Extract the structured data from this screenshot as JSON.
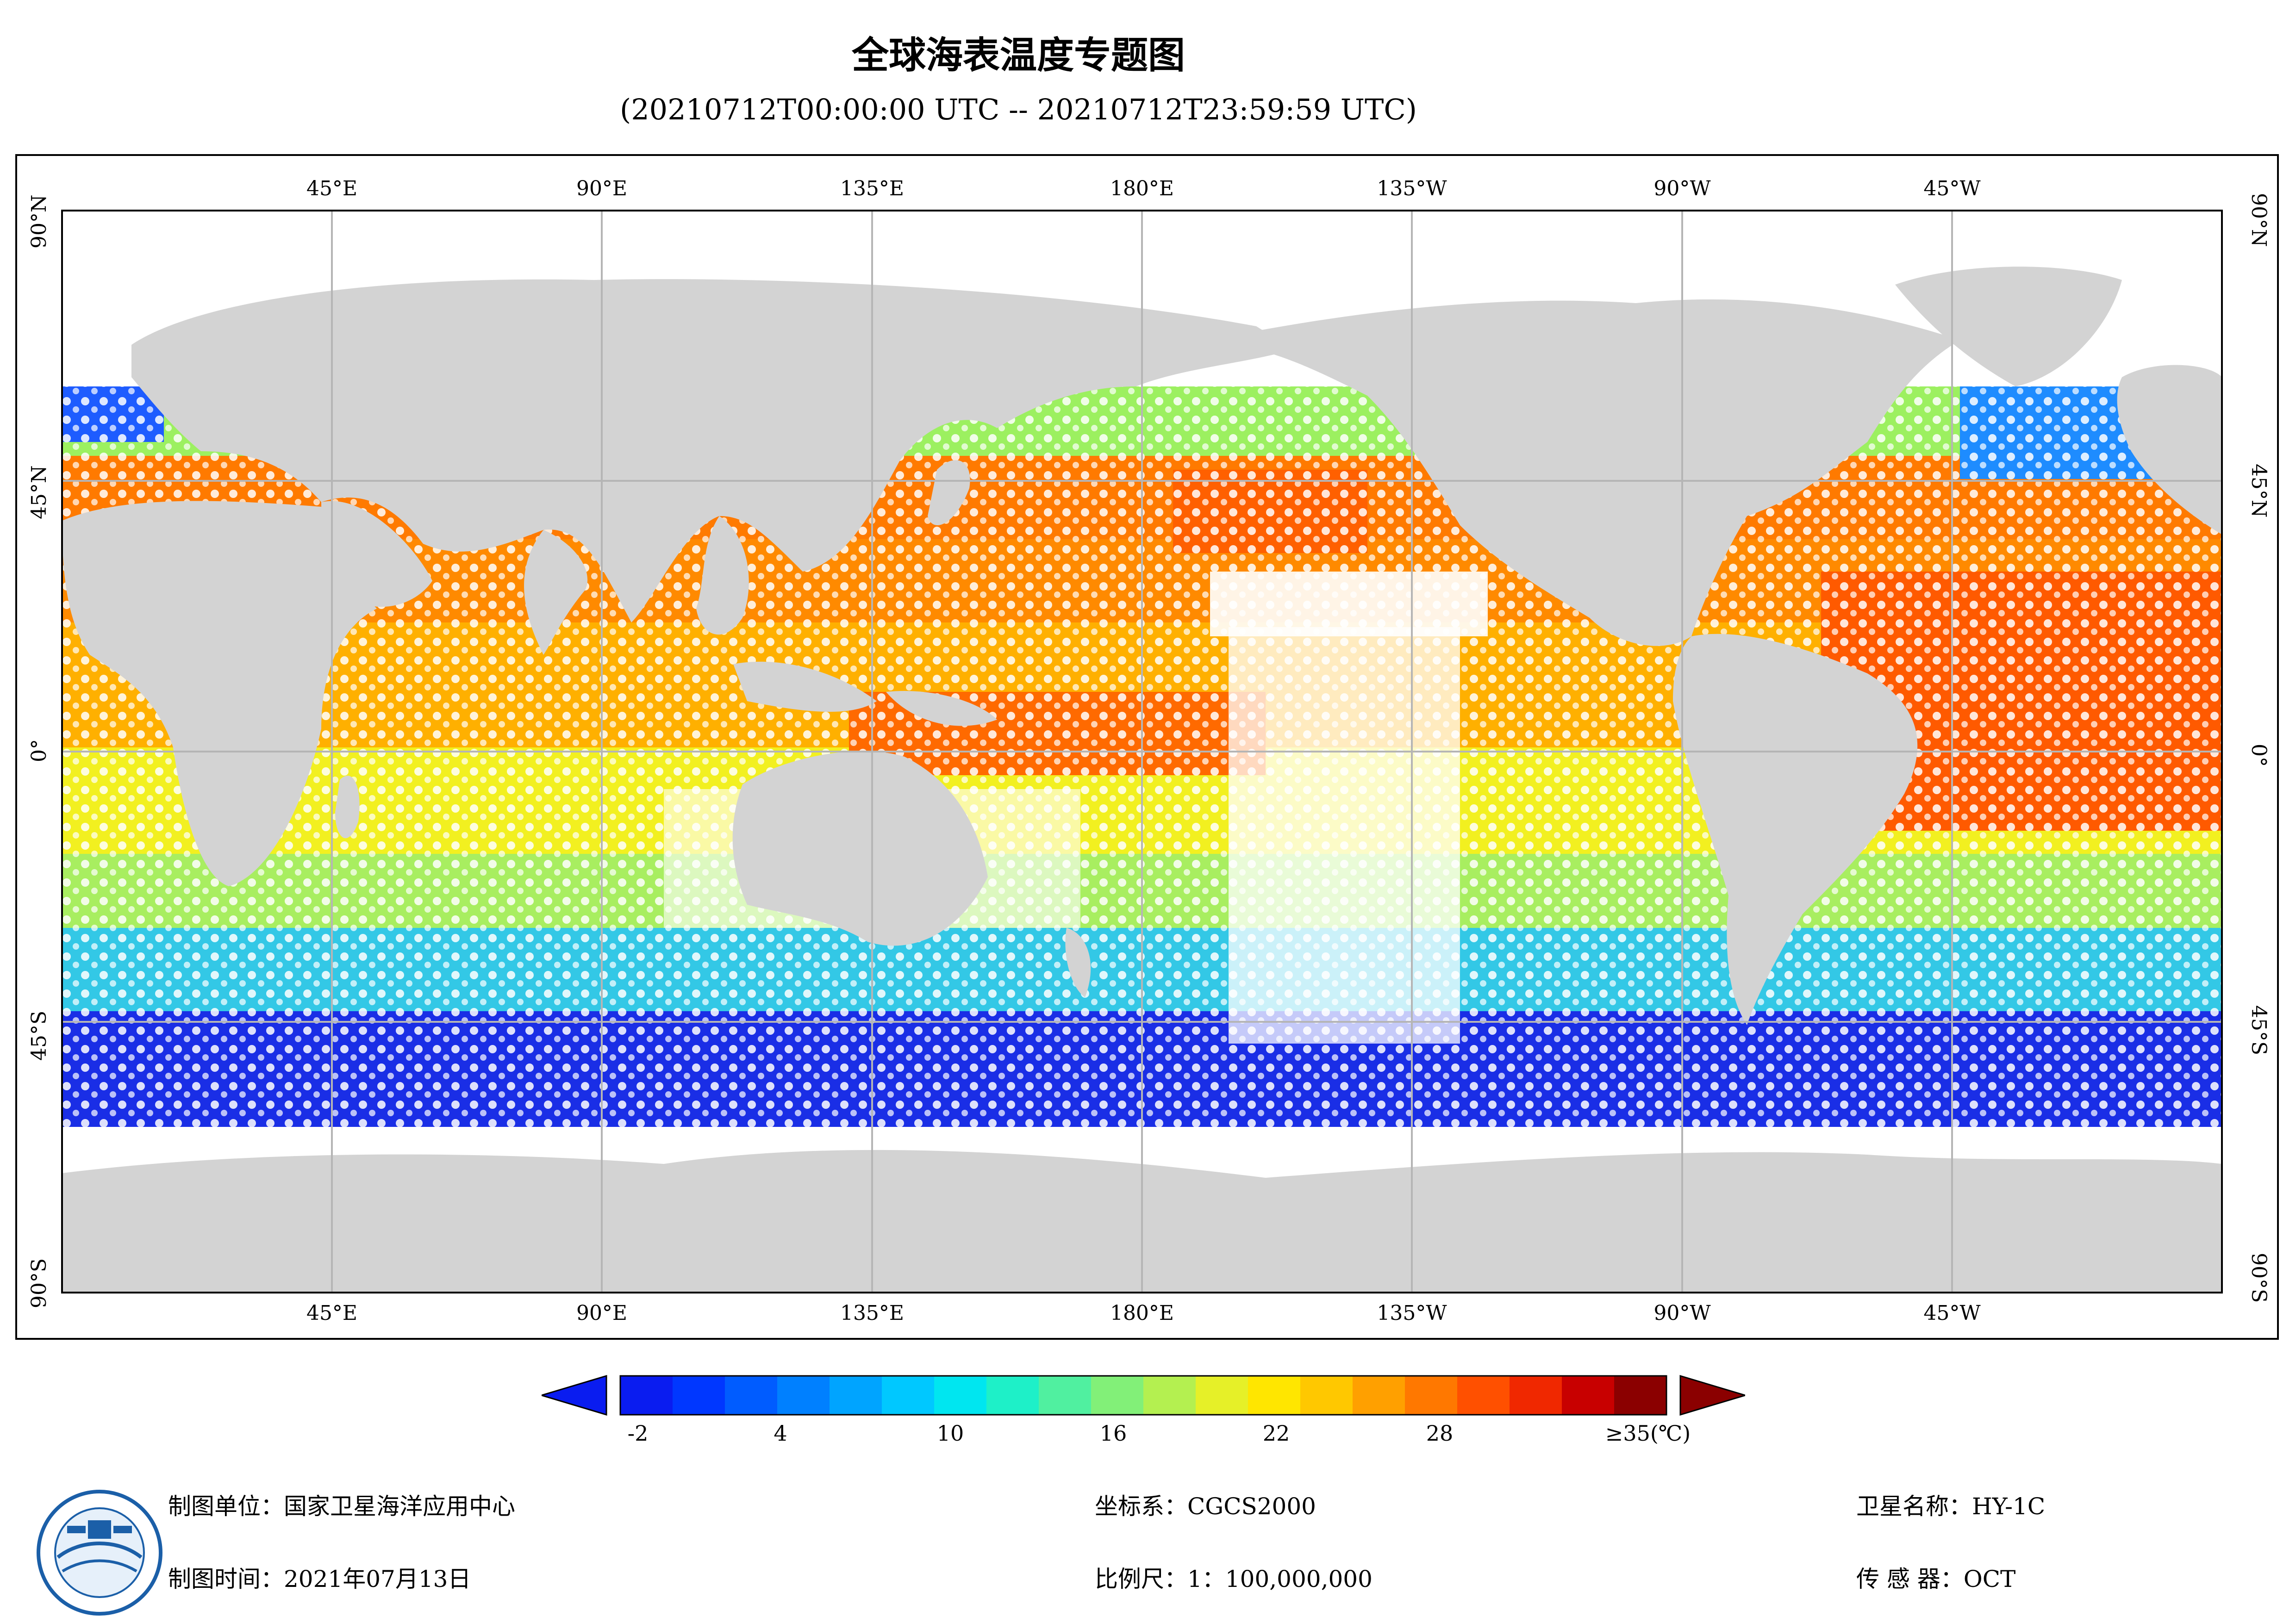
{
  "header": {
    "title": "全球海表温度专题图",
    "subtitle": "(20210712T00:00:00 UTC -- 20210712T23:59:59 UTC)"
  },
  "map": {
    "projection": "equirectangular, centered 180°",
    "colors": {
      "land": "#d3d3d3",
      "ocean_nodata": "#ffffff",
      "grid": "#b5b5b5",
      "frame": "#000000"
    },
    "lon_labels": [
      "45°E",
      "90°E",
      "135°E",
      "180°E",
      "135°W",
      "90°W",
      "45°W"
    ],
    "lat_labels_left": [
      "90°N",
      "45°N",
      "0°",
      "45°S",
      "90°S"
    ],
    "lat_labels_right": [
      "90°N",
      "45°N",
      "0°",
      "45°S",
      "90°S"
    ]
  },
  "colorbar": {
    "labels": [
      "-2",
      "4",
      "10",
      "16",
      "22",
      "28",
      "≥35(℃)"
    ],
    "under_color": "#0000ff",
    "over_color": "#8b0000",
    "colors": [
      "#0a1cf0",
      "#0037ff",
      "#005cff",
      "#0080ff",
      "#00a4ff",
      "#00c8ff",
      "#00e6f0",
      "#1ef0c8",
      "#50f0a0",
      "#82f078",
      "#b4f050",
      "#e6f028",
      "#ffe600",
      "#ffc800",
      "#ffa000",
      "#ff7800",
      "#ff5000",
      "#f02800",
      "#c80000",
      "#8b0000"
    ]
  },
  "footer": {
    "unit": "制图单位：国家卫星海洋应用中心",
    "date": "制图时间：2021年07月13日",
    "crs": "坐标系：CGCS2000",
    "scale": "比例尺：1：100,000,000",
    "satellite": "卫星名称：HY-1C",
    "sensor": "传 感 器：OCT"
  }
}
